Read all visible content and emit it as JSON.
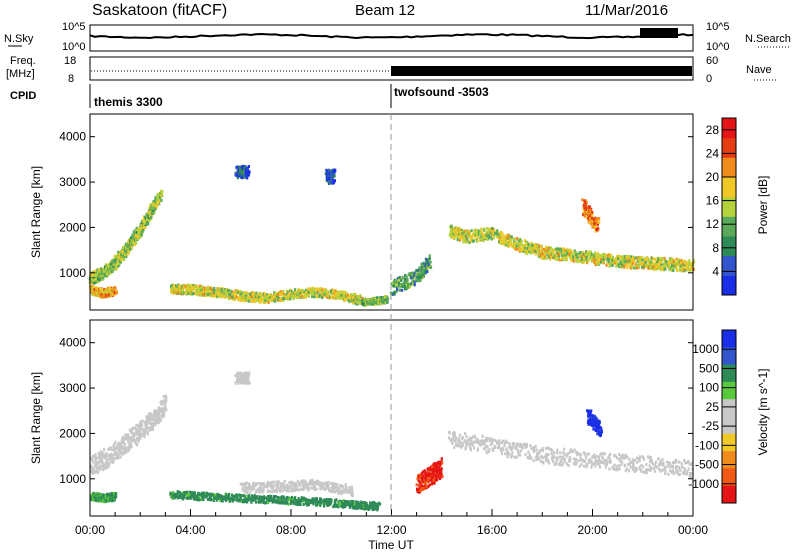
{
  "header": {
    "station": "Saskatoon (fitACF)",
    "beam": "Beam 12",
    "date": "11/Mar/2016"
  },
  "status_panel": {
    "left_label": "N.Sky",
    "right_label": "N.Search",
    "left_ticks": [
      "10^5",
      "10^0"
    ],
    "right_ticks": [
      "10^5",
      "10^0"
    ]
  },
  "freq_panel": {
    "left_label_1": "Freq.",
    "left_label_2": "[MHz]",
    "right_label": "Nave",
    "left_ticks": [
      "18",
      "8"
    ],
    "right_ticks": [
      "60",
      "0"
    ]
  },
  "cpid": {
    "label": "CPID",
    "segments": [
      {
        "name": "themis 3300",
        "start_hour": 0,
        "end_hour": 12
      },
      {
        "name": "twofsound -3503",
        "start_hour": 12,
        "end_hour": 24
      }
    ]
  },
  "colors": {
    "power_scale": [
      "#1a2ee6",
      "#3355cc",
      "#2e8b57",
      "#5aaa5a",
      "#b4d23c",
      "#f0c828",
      "#f08c1e",
      "#e63c14",
      "#e61414"
    ],
    "velocity_scale": [
      "#e61414",
      "#f05a14",
      "#f08c1e",
      "#f0c828",
      "#c8c8c8",
      "#c8c8c8",
      "#5ac83c",
      "#2e8b57",
      "#3355cc",
      "#1a2ee6"
    ]
  },
  "chart_data": [
    {
      "type": "heatmap",
      "title": "",
      "ylabel": "Slant Range [km]",
      "xlabel": "",
      "ylim": [
        180,
        4500
      ],
      "xlim": [
        0,
        24
      ],
      "yticks": [
        "1000",
        "2000",
        "3000",
        "4000"
      ],
      "colorbar_label": "Power [dB]",
      "colorbar_ticks": [
        "4",
        "8",
        "12",
        "16",
        "20",
        "24",
        "28"
      ],
      "colorbar_range": [
        0,
        30
      ],
      "bands": [
        {
          "x": [
            0.0,
            0.4,
            0.8,
            1.2,
            1.6,
            2.0,
            2.4,
            2.8
          ],
          "y": [
            900,
            1000,
            1150,
            1400,
            1700,
            2000,
            2400,
            2750
          ],
          "width": 260,
          "value": 14
        },
        {
          "x": [
            0.0,
            0.5,
            1.0
          ],
          "y": [
            650,
            580,
            640
          ],
          "width": 180,
          "value": 20
        },
        {
          "x": [
            3.2,
            4.0,
            5.0,
            6.0,
            7.0,
            8.0,
            9.0,
            10.0,
            10.8
          ],
          "y": [
            680,
            660,
            600,
            520,
            470,
            560,
            600,
            520,
            420
          ],
          "width": 200,
          "value": 16
        },
        {
          "x": [
            10.8,
            11.3,
            11.8
          ],
          "y": [
            380,
            400,
            450
          ],
          "width": 140,
          "value": 12
        },
        {
          "x": [
            14.3,
            15.0,
            16.0,
            17.0,
            18.0,
            19.0,
            20.0,
            21.0,
            22.0,
            23.0,
            24.0
          ],
          "y": [
            1950,
            1820,
            1900,
            1650,
            1480,
            1420,
            1350,
            1280,
            1250,
            1220,
            1180
          ],
          "width": 260,
          "value": 16
        },
        {
          "x": [
            12.0,
            13.0,
            13.5
          ],
          "y": [
            700,
            950,
            1300
          ],
          "width": 300,
          "value": 10
        },
        {
          "x": [
            19.6,
            20.2
          ],
          "y": [
            2500,
            2050
          ],
          "width": 360,
          "value": 22
        },
        {
          "x": [
            5.8,
            6.3
          ],
          "y": [
            3250,
            3250
          ],
          "width": 260,
          "value": 5
        },
        {
          "x": [
            9.4,
            9.7
          ],
          "y": [
            3150,
            3150
          ],
          "width": 300,
          "value": 5
        }
      ]
    },
    {
      "type": "heatmap",
      "title": "",
      "xlabel": "Time UT",
      "ylabel": "Slant Range [km]",
      "ylim": [
        180,
        4500
      ],
      "xlim": [
        0,
        24
      ],
      "xticks": [
        "00:00",
        "04:00",
        "08:00",
        "12:00",
        "16:00",
        "20:00",
        "00:00"
      ],
      "yticks": [
        "1000",
        "2000",
        "3000",
        "4000"
      ],
      "colorbar_label": "Velocity [m s^-1]",
      "colorbar_ticks": [
        "1000",
        "500",
        "100",
        "25",
        "-25",
        "-100",
        "-500",
        "-1000"
      ],
      "bands": [
        {
          "x": [
            0.0,
            0.8,
            1.6,
            2.4,
            3.0
          ],
          "y": [
            1300,
            1550,
            1900,
            2300,
            2700
          ],
          "width": 420,
          "value": 0
        },
        {
          "x": [
            0.0,
            0.5,
            1.0
          ],
          "y": [
            650,
            600,
            640
          ],
          "width": 160,
          "value": 120
        },
        {
          "x": [
            3.2,
            4.5,
            6.0,
            7.5,
            9.0,
            10.5,
            11.5
          ],
          "y": [
            680,
            640,
            600,
            560,
            520,
            460,
            420
          ],
          "width": 160,
          "value": 150
        },
        {
          "x": [
            6.0,
            7.5,
            9.0,
            10.5
          ],
          "y": [
            820,
            860,
            900,
            760
          ],
          "width": 220,
          "value": 0
        },
        {
          "x": [
            13.0,
            13.5,
            14.0
          ],
          "y": [
            900,
            1100,
            1300
          ],
          "width": 420,
          "value": -600
        },
        {
          "x": [
            14.3,
            16.0,
            18.0,
            20.0,
            22.0,
            24.0
          ],
          "y": [
            1900,
            1750,
            1550,
            1450,
            1350,
            1250
          ],
          "width": 360,
          "value": 0
        },
        {
          "x": [
            19.8,
            20.3
          ],
          "y": [
            2400,
            2100
          ],
          "width": 320,
          "value": 700
        },
        {
          "x": [
            5.8,
            6.3
          ],
          "y": [
            3250,
            3250
          ],
          "width": 240,
          "value": 0
        }
      ]
    }
  ]
}
